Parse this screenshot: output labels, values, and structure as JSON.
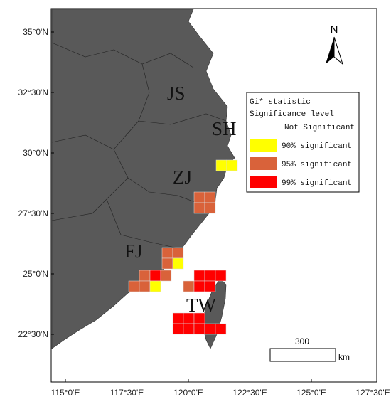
{
  "axes": {
    "latitude_labels": [
      "35°0'N",
      "32°30'N",
      "30°0'N",
      "27°30'N",
      "25°0'N",
      "22°30'N"
    ],
    "longitude_labels": [
      "115°0'E",
      "117°30'E",
      "120°0'E",
      "122°30'E",
      "125°0'E",
      "127°30'E"
    ]
  },
  "regions": [
    "JS",
    "SH",
    "ZJ",
    "FJ",
    "TW"
  ],
  "legend": {
    "title": "Gi* statistic",
    "subtitle": "Significance level",
    "items": [
      "Not Significant",
      "90% significant",
      "95% significant",
      "99% significant"
    ]
  },
  "scale_bar": {
    "label": "300",
    "unit": "km"
  },
  "north_arrow": "N"
}
